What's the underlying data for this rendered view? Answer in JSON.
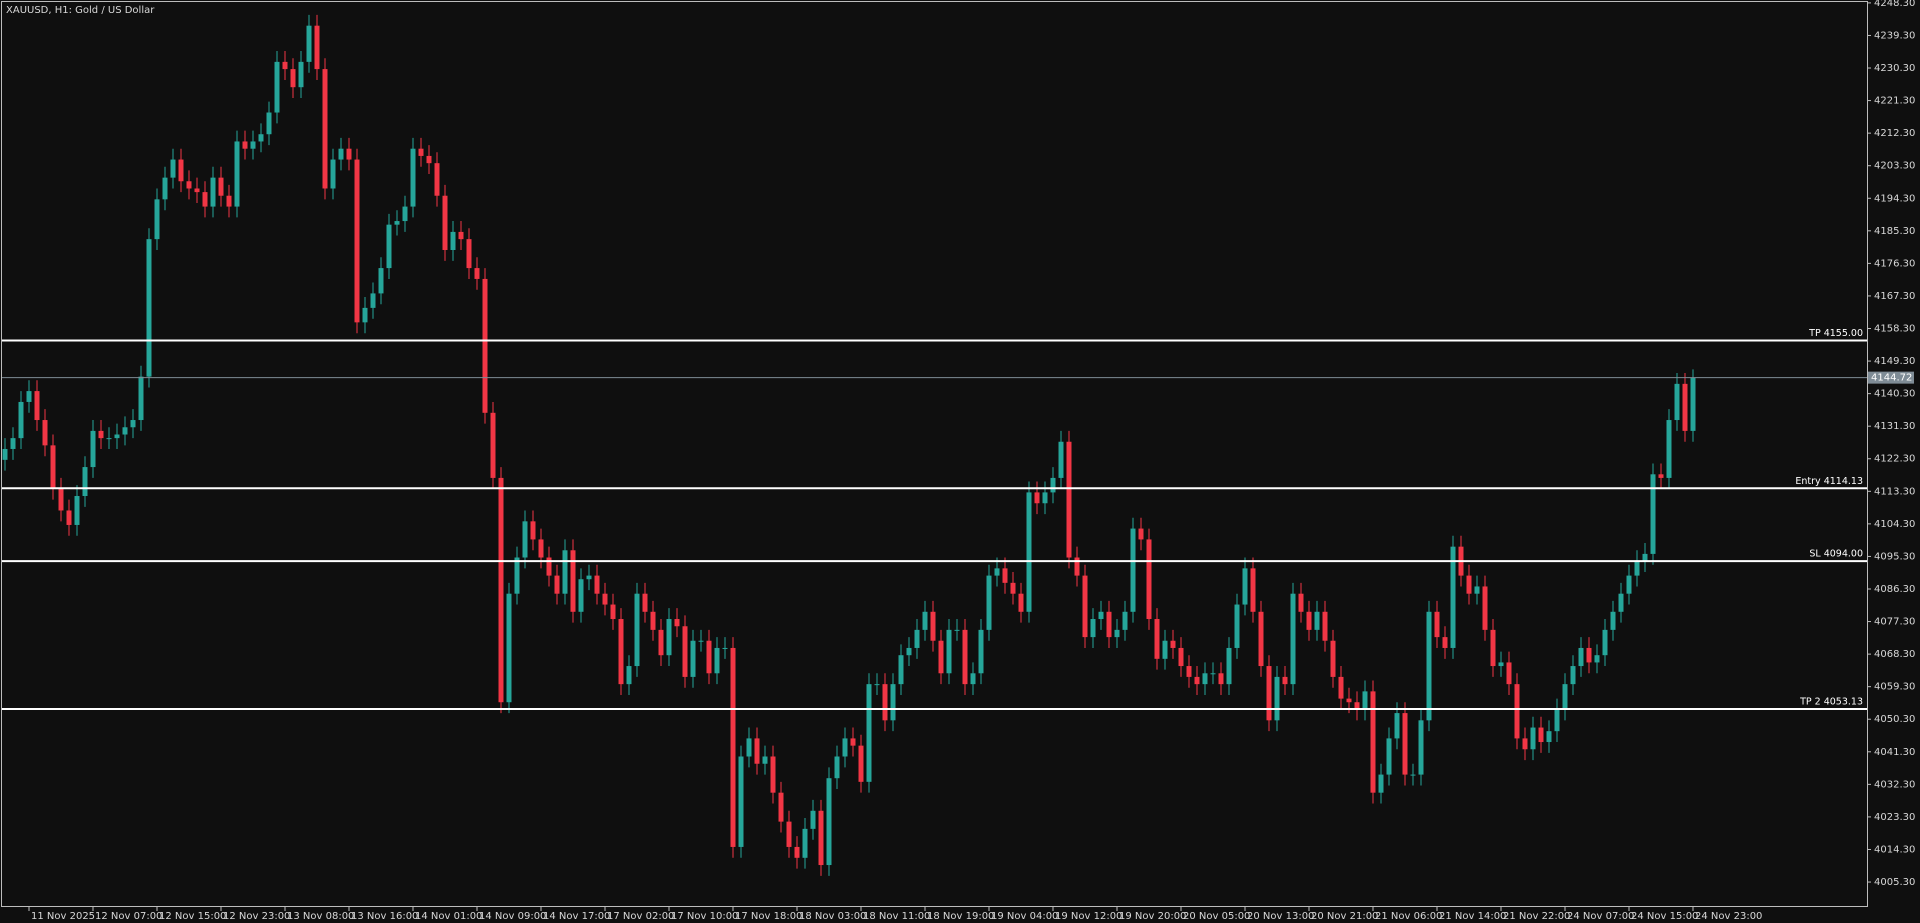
{
  "chart_data": {
    "type": "candlestick",
    "title": "XAUUSD, H1:  Gold / US Dollar",
    "up_color": "#26a69a",
    "down_color": "#f23645",
    "background": "#0f0f0f",
    "ylim": [
      3998.4,
      4249.1
    ],
    "yticks": [
      {
        "value": 4248.3,
        "label": "4248.30"
      },
      {
        "value": 4239.3,
        "label": "4239.30"
      },
      {
        "value": 4230.3,
        "label": "4230.30"
      },
      {
        "value": 4221.3,
        "label": "4221.30"
      },
      {
        "value": 4212.3,
        "label": "4212.30"
      },
      {
        "value": 4203.3,
        "label": "4203.30"
      },
      {
        "value": 4194.3,
        "label": "4194.30"
      },
      {
        "value": 4185.3,
        "label": "4185.30"
      },
      {
        "value": 4176.3,
        "label": "4176.30"
      },
      {
        "value": 4167.3,
        "label": "4167.30"
      },
      {
        "value": 4158.3,
        "label": "4158.30"
      },
      {
        "value": 4149.3,
        "label": "4149.30"
      },
      {
        "value": 4140.3,
        "label": "4140.30"
      },
      {
        "value": 4131.3,
        "label": "4131.30"
      },
      {
        "value": 4122.3,
        "label": "4122.30"
      },
      {
        "value": 4113.3,
        "label": "4113.30"
      },
      {
        "value": 4104.3,
        "label": "4104.30"
      },
      {
        "value": 4095.3,
        "label": "4095.30"
      },
      {
        "value": 4086.3,
        "label": "4086.30"
      },
      {
        "value": 4077.3,
        "label": "4077.30"
      },
      {
        "value": 4068.3,
        "label": "4068.30"
      },
      {
        "value": 4059.3,
        "label": "4059.30"
      },
      {
        "value": 4050.3,
        "label": "4050.30"
      },
      {
        "value": 4041.3,
        "label": "4041.30"
      },
      {
        "value": 4032.3,
        "label": "4032.30"
      },
      {
        "value": 4023.3,
        "label": "4023.30"
      },
      {
        "value": 4014.3,
        "label": "4014.30"
      },
      {
        "value": 4005.3,
        "label": "4005.30"
      }
    ],
    "levels": [
      {
        "value": 4155,
        "label": "TP 4155.00"
      },
      {
        "value": 4114.13,
        "label": "Entry 4114.13"
      },
      {
        "value": 4094,
        "label": "SL 4094.00"
      },
      {
        "value": 4053.13,
        "label": "TP 2 4053.13"
      }
    ],
    "last_price": {
      "value": 4144.72,
      "label": "4144.72"
    },
    "categories": [
      null,
      null,
      null,
      "11 Nov 2025",
      null,
      null,
      null,
      null,
      null,
      null,
      null,
      "12 Nov 07:00",
      null,
      null,
      null,
      null,
      null,
      null,
      null,
      "12 Nov 15:00",
      null,
      null,
      null,
      null,
      null,
      null,
      null,
      "12 Nov 23:00",
      null,
      null,
      null,
      null,
      null,
      null,
      null,
      "13 Nov 08:00",
      null,
      null,
      null,
      null,
      null,
      null,
      null,
      "13 Nov 16:00",
      null,
      null,
      null,
      null,
      null,
      null,
      null,
      "14 Nov 01:00",
      null,
      null,
      null,
      null,
      null,
      null,
      null,
      "14 Nov 09:00",
      null,
      null,
      null,
      null,
      null,
      null,
      null,
      "14 Nov 17:00",
      null,
      null,
      null,
      null,
      null,
      null,
      null,
      "17 Nov 02:00",
      null,
      null,
      null,
      null,
      null,
      null,
      null,
      "17 Nov 10:00",
      null,
      null,
      null,
      null,
      null,
      null,
      null,
      "17 Nov 18:00",
      null,
      null,
      null,
      null,
      null,
      null,
      null,
      "18 Nov 03:00",
      null,
      null,
      null,
      null,
      null,
      null,
      null,
      "18 Nov 11:00",
      null,
      null,
      null,
      null,
      null,
      null,
      null,
      "18 Nov 19:00",
      null,
      null,
      null,
      null,
      null,
      null,
      null,
      "19 Nov 04:00",
      null,
      null,
      null,
      null,
      null,
      null,
      null,
      "19 Nov 12:00",
      null,
      null,
      null,
      null,
      null,
      null,
      null,
      "19 Nov 20:00",
      null,
      null,
      null,
      null,
      null,
      null,
      null,
      "20 Nov 05:00",
      null,
      null,
      null,
      null,
      null,
      null,
      null,
      "20 Nov 13:00",
      null,
      null,
      null,
      null,
      null,
      null,
      null,
      "20 Nov 21:00",
      null,
      null,
      null,
      null,
      null,
      null,
      null,
      "21 Nov 06:00",
      null,
      null,
      null,
      null,
      null,
      null,
      null,
      "21 Nov 14:00",
      null,
      null,
      null,
      null,
      null,
      null,
      null,
      "21 Nov 22:00",
      null,
      null,
      null,
      null,
      null,
      null,
      null,
      "24 Nov 07:00",
      null,
      null,
      null,
      null,
      null,
      null,
      null,
      "24 Nov 15:00",
      null,
      null,
      null,
      null,
      null,
      null,
      null,
      "24 Nov 23:00"
    ],
    "open": [
      4122,
      4125,
      4128,
      4138,
      4141,
      4133,
      4126,
      4114,
      4108,
      4104,
      4112,
      4120,
      4130,
      4128,
      4128,
      4129,
      4131,
      4133,
      4145,
      4183,
      4194,
      4200,
      4205,
      4199,
      4197,
      4196,
      4192,
      4200,
      4195,
      4192,
      4210,
      4208,
      4210,
      4212,
      4218,
      4232,
      4230,
      4225,
      4232,
      4242,
      4230,
      4197,
      4205,
      4208,
      4205,
      4160,
      4164,
      4168,
      4175,
      4187,
      4188,
      4192,
      4208,
      4206,
      4204,
      4195,
      4180,
      4185,
      4183,
      4175,
      4172,
      4135,
      4117,
      4055,
      4085,
      4095,
      4105,
      4100,
      4095,
      4090,
      4085,
      4097,
      4080,
      4089,
      4090,
      4085,
      4082,
      4078,
      4060,
      4065,
      4085,
      4080,
      4075,
      4068,
      4078,
      4076,
      4062,
      4072,
      4072,
      4063,
      4070,
      4070,
      4015,
      4040,
      4045,
      4038,
      4040,
      4030,
      4022,
      4015,
      4012,
      4020,
      4025,
      4010,
      4034,
      4040,
      4045,
      4043,
      4033,
      4060,
      4060,
      4050,
      4060,
      4068,
      4070,
      4075,
      4080,
      4072,
      4063,
      4075,
      4075,
      4060,
      4063,
      4075,
      4090,
      4092,
      4088,
      4085,
      4080,
      4113,
      4110,
      4113,
      4117,
      4127,
      4095,
      4090,
      4073,
      4078,
      4080,
      4073,
      4075,
      4080,
      4103,
      4100,
      4078,
      4067,
      4072,
      4070,
      4065,
      4062,
      4060,
      4063,
      4063,
      4060,
      4070,
      4082,
      4092,
      4080,
      4065,
      4050,
      4062,
      4060,
      4085,
      4080,
      4075,
      4080,
      4072,
      4062,
      4056,
      4055,
      4053,
      4058,
      4030,
      4035,
      4045,
      4052,
      4035,
      4035,
      4050,
      4080,
      4073,
      4070,
      4098,
      4090,
      4085,
      4087,
      4075,
      4065,
      4066,
      4060,
      4045,
      4042,
      4048,
      4044,
      4047,
      4053,
      4060,
      4065,
      4070,
      4066,
      4068,
      4075,
      4080,
      4085,
      4090,
      4094,
      4096,
      4118,
      4117,
      4133,
      4143,
      4130
    ],
    "high": [
      4128,
      4131,
      4141,
      4144,
      4144,
      4136,
      4129,
      4117,
      4111,
      4115,
      4123,
      4133,
      4133,
      4131,
      4132,
      4134,
      4136,
      4148,
      4186,
      4197,
      4203,
      4208,
      4208,
      4202,
      4200,
      4199,
      4203,
      4203,
      4198,
      4213,
      4213,
      4213,
      4215,
      4221,
      4235,
      4235,
      4233,
      4235,
      4245,
      4245,
      4233,
      4208,
      4211,
      4211,
      4208,
      4167,
      4171,
      4178,
      4190,
      4191,
      4195,
      4211,
      4211,
      4209,
      4207,
      4198,
      4188,
      4188,
      4186,
      4178,
      4175,
      4138,
      4120,
      4088,
      4098,
      4108,
      4108,
      4103,
      4098,
      4093,
      4100,
      4100,
      4092,
      4093,
      4093,
      4088,
      4085,
      4081,
      4068,
      4088,
      4088,
      4083,
      4078,
      4081,
      4081,
      4079,
      4075,
      4075,
      4075,
      4073,
      4073,
      4073,
      4043,
      4048,
      4048,
      4043,
      4043,
      4033,
      4025,
      4018,
      4023,
      4028,
      4028,
      4037,
      4043,
      4048,
      4048,
      4046,
      4063,
      4063,
      4063,
      4063,
      4071,
      4073,
      4078,
      4083,
      4083,
      4075,
      4078,
      4078,
      4078,
      4066,
      4078,
      4093,
      4095,
      4095,
      4091,
      4088,
      4116,
      4116,
      4116,
      4120,
      4130,
      4130,
      4098,
      4093,
      4081,
      4083,
      4083,
      4078,
      4083,
      4106,
      4106,
      4103,
      4081,
      4075,
      4075,
      4073,
      4068,
      4065,
      4066,
      4066,
      4066,
      4073,
      4085,
      4095,
      4095,
      4083,
      4068,
      4065,
      4065,
      4088,
      4088,
      4083,
      4083,
      4083,
      4075,
      4065,
      4059,
      4058,
      4061,
      4061,
      4038,
      4048,
      4055,
      4055,
      4038,
      4053,
      4083,
      4083,
      4076,
      4101,
      4101,
      4093,
      4090,
      4090,
      4078,
      4069,
      4069,
      4063,
      4048,
      4051,
      4051,
      4050,
      4056,
      4063,
      4068,
      4073,
      4073,
      4071,
      4078,
      4083,
      4088,
      4093,
      4097,
      4099,
      4121,
      4121,
      4136,
      4146,
      4146,
      4147
    ],
    "low": [
      4119,
      4122,
      4125,
      4135,
      4130,
      4123,
      4111,
      4105,
      4101,
      4101,
      4109,
      4117,
      4125,
      4125,
      4125,
      4126,
      4128,
      4130,
      4142,
      4180,
      4191,
      4197,
      4196,
      4194,
      4193,
      4189,
      4189,
      4192,
      4189,
      4189,
      4205,
      4205,
      4207,
      4209,
      4215,
      4227,
      4222,
      4222,
      4229,
      4227,
      4194,
      4194,
      4202,
      4202,
      4157,
      4157,
      4161,
      4165,
      4172,
      4184,
      4185,
      4189,
      4203,
      4201,
      4192,
      4177,
      4177,
      4180,
      4172,
      4169,
      4132,
      4114,
      4052,
      4052,
      4082,
      4092,
      4097,
      4092,
      4087,
      4082,
      4082,
      4077,
      4077,
      4086,
      4082,
      4079,
      4075,
      4057,
      4057,
      4062,
      4077,
      4072,
      4065,
      4065,
      4073,
      4059,
      4059,
      4069,
      4060,
      4060,
      4067,
      4012,
      4012,
      4037,
      4035,
      4035,
      4027,
      4019,
      4012,
      4009,
      4009,
      4017,
      4007,
      4007,
      4031,
      4037,
      4040,
      4030,
      4030,
      4057,
      4047,
      4047,
      4057,
      4065,
      4067,
      4072,
      4069,
      4060,
      4060,
      4072,
      4057,
      4057,
      4060,
      4072,
      4087,
      4085,
      4082,
      4077,
      4077,
      4107,
      4107,
      4110,
      4114,
      4092,
      4087,
      4070,
      4070,
      4075,
      4070,
      4070,
      4072,
      4077,
      4097,
      4075,
      4064,
      4064,
      4067,
      4062,
      4059,
      4057,
      4057,
      4060,
      4057,
      4057,
      4067,
      4079,
      4077,
      4062,
      4047,
      4047,
      4057,
      4057,
      4077,
      4072,
      4072,
      4069,
      4059,
      4053,
      4052,
      4050,
      4050,
      4027,
      4027,
      4032,
      4042,
      4032,
      4032,
      4032,
      4047,
      4070,
      4067,
      4067,
      4087,
      4082,
      4082,
      4072,
      4062,
      4062,
      4057,
      4042,
      4039,
      4039,
      4041,
      4041,
      4044,
      4050,
      4057,
      4062,
      4063,
      4063,
      4065,
      4072,
      4077,
      4082,
      4087,
      4091,
      4093,
      4114,
      4114,
      4130,
      4127,
      4127
    ],
    "close": [
      4125,
      4128,
      4138,
      4141,
      4133,
      4126,
      4114,
      4108,
      4104,
      4112,
      4120,
      4130,
      4128,
      4128,
      4129,
      4131,
      4133,
      4145,
      4183,
      4194,
      4200,
      4205,
      4199,
      4197,
      4196,
      4192,
      4200,
      4195,
      4192,
      4210,
      4208,
      4210,
      4212,
      4218,
      4232,
      4230,
      4225,
      4232,
      4242,
      4230,
      4197,
      4205,
      4208,
      4205,
      4160,
      4164,
      4168,
      4175,
      4187,
      4188,
      4192,
      4208,
      4206,
      4204,
      4195,
      4180,
      4185,
      4183,
      4175,
      4172,
      4135,
      4117,
      4055,
      4085,
      4095,
      4105,
      4100,
      4095,
      4090,
      4085,
      4097,
      4080,
      4089,
      4090,
      4085,
      4082,
      4078,
      4060,
      4065,
      4085,
      4080,
      4075,
      4068,
      4078,
      4076,
      4062,
      4072,
      4072,
      4063,
      4070,
      4070,
      4015,
      4040,
      4045,
      4038,
      4040,
      4030,
      4022,
      4015,
      4012,
      4020,
      4025,
      4010,
      4034,
      4040,
      4045,
      4043,
      4033,
      4060,
      4060,
      4050,
      4060,
      4068,
      4070,
      4075,
      4080,
      4072,
      4063,
      4075,
      4075,
      4060,
      4063,
      4075,
      4090,
      4092,
      4088,
      4085,
      4080,
      4113,
      4110,
      4113,
      4117,
      4127,
      4095,
      4090,
      4073,
      4078,
      4080,
      4073,
      4075,
      4080,
      4103,
      4100,
      4078,
      4067,
      4072,
      4070,
      4065,
      4062,
      4060,
      4063,
      4063,
      4060,
      4070,
      4082,
      4092,
      4080,
      4065,
      4050,
      4062,
      4060,
      4085,
      4080,
      4075,
      4080,
      4072,
      4062,
      4056,
      4055,
      4053,
      4058,
      4030,
      4035,
      4045,
      4052,
      4035,
      4035,
      4050,
      4080,
      4073,
      4070,
      4098,
      4090,
      4085,
      4087,
      4075,
      4065,
      4066,
      4060,
      4045,
      4042,
      4048,
      4044,
      4047,
      4053,
      4060,
      4065,
      4070,
      4066,
      4068,
      4075,
      4080,
      4085,
      4090,
      4094,
      4096,
      4118,
      4117,
      4133,
      4143,
      4130,
      4144.72
    ]
  }
}
